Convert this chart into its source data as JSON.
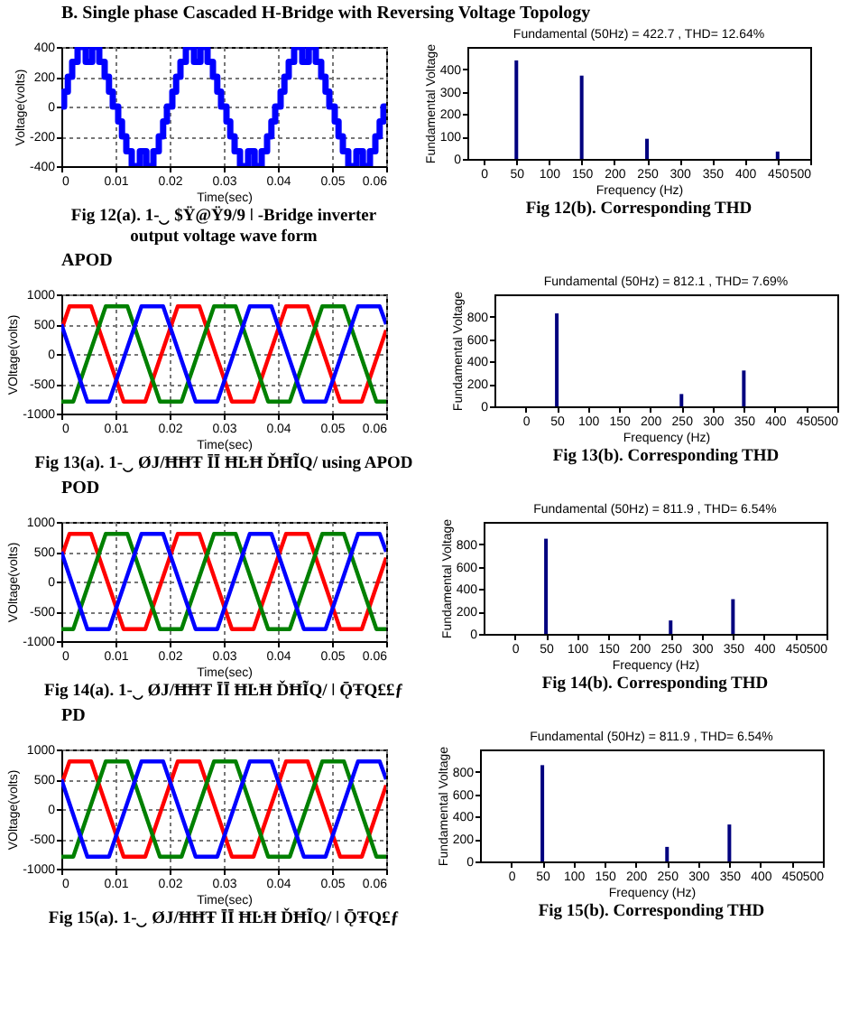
{
  "chart_data": [
    {
      "type": "step",
      "xlabel": "Time(sec)",
      "ylabel": "Voltage(volts)",
      "grid": true,
      "xlim": [
        0,
        0.06
      ],
      "ylim": [
        -400,
        400
      ],
      "xticks": [
        0,
        0.01,
        0.02,
        0.03,
        0.04,
        0.05,
        0.06
      ],
      "yticks": [
        -400,
        -200,
        0,
        200,
        400
      ],
      "annotations": [
        "B.   Single phase Cascaded H-Bridge with Reversing Voltage Topology",
        "Fig 12(a). 1-‿ $Ÿ@Ÿ9/9 ǀ -Bridge inverter\noutput voltage wave form"
      ],
      "x": [
        0,
        0.0005,
        0.0012,
        0.002,
        0.003,
        0.0045,
        0.0057,
        0.007,
        0.008,
        0.0088,
        0.0095,
        0.0105,
        0.0112,
        0.012,
        0.013,
        0.0145,
        0.0157,
        0.017,
        0.018,
        0.0188,
        0.0195,
        0.02,
        0.0205,
        0.0212,
        0.022,
        0.023,
        0.0245,
        0.0257,
        0.027,
        0.028,
        0.0288,
        0.0295,
        0.0305,
        0.0312,
        0.032,
        0.033,
        0.0345,
        0.0357,
        0.037,
        0.038,
        0.0388,
        0.0395,
        0.04,
        0.0405,
        0.0412,
        0.042,
        0.043,
        0.0445,
        0.0457,
        0.047,
        0.048,
        0.0488,
        0.0495,
        0.0505,
        0.0512,
        0.052,
        0.053,
        0.0545,
        0.0557,
        0.057,
        0.058,
        0.0588,
        0.0595,
        0.06
      ],
      "series": [
        {
          "color": "#0000ff",
          "values": [
            0,
            100,
            200,
            300,
            400,
            300,
            400,
            300,
            200,
            100,
            0,
            -100,
            -200,
            -300,
            -400,
            -300,
            -400,
            -300,
            -200,
            -100,
            0,
            0,
            100,
            200,
            300,
            400,
            300,
            400,
            300,
            200,
            100,
            0,
            -100,
            -200,
            -300,
            -400,
            -300,
            -400,
            -300,
            -200,
            -100,
            0,
            0,
            100,
            200,
            300,
            400,
            300,
            400,
            300,
            200,
            100,
            0,
            -100,
            -200,
            -300,
            -400,
            -300,
            -400,
            -300,
            -200,
            -100,
            0,
            0
          ]
        }
      ]
    },
    {
      "type": "bar",
      "title": "Fundamental (50Hz) = 422.7 , THD= 12.64%",
      "xlabel": "Frequency (Hz)",
      "ylabel": "Fundamental Voltage",
      "xlim": [
        -25,
        500
      ],
      "ylim": [
        0,
        500
      ],
      "xticks": [
        0,
        50,
        100,
        150,
        200,
        250,
        300,
        350,
        400,
        450,
        500
      ],
      "yticks": [
        0,
        100,
        200,
        300,
        400
      ],
      "annotations": [
        "Fig 12(b). Corresponding THD"
      ],
      "x": [
        50,
        150,
        250,
        450
      ],
      "values": [
        440,
        372,
        90,
        33
      ],
      "color": "#00007f"
    },
    {
      "type": "line",
      "xlabel": "Time(sec)",
      "ylabel": "VOltage(volts)",
      "grid": true,
      "xlim": [
        0,
        0.06
      ],
      "ylim": [
        -1000,
        1000
      ],
      "xticks": [
        0,
        0.01,
        0.02,
        0.03,
        0.04,
        0.05,
        0.06
      ],
      "yticks": [
        -1000,
        -500,
        0,
        500,
        1000
      ],
      "annotations": [
        "APOD",
        "Fig 13(a). 1-‿ ØJ/ĦĦŦ ĪĪ ĦĿĦ ĎĦĨQ/ using APOD"
      ],
      "series": [
        {
          "color": "#ff0000",
          "x": [
            0,
            0.0015,
            0.0055,
            0.0115,
            0.0155,
            0.0215,
            0.0255,
            0.0315,
            0.0355,
            0.0415,
            0.0455,
            0.0515,
            0.0555,
            0.06
          ],
          "values": [
            400,
            800,
            800,
            -800,
            -800,
            800,
            800,
            -800,
            -800,
            800,
            800,
            -800,
            -800,
            400
          ]
        },
        {
          "color": "#008000",
          "x": [
            0,
            0.0022,
            0.0082,
            0.0122,
            0.0182,
            0.0222,
            0.0282,
            0.0322,
            0.0382,
            0.0422,
            0.0482,
            0.0522,
            0.0582,
            0.06
          ],
          "values": [
            -800,
            -800,
            800,
            800,
            -800,
            -800,
            800,
            800,
            -800,
            -800,
            800,
            800,
            -800,
            -800
          ]
        },
        {
          "color": "#0000ff",
          "x": [
            0,
            0.0048,
            0.0088,
            0.0148,
            0.0188,
            0.0248,
            0.0288,
            0.0348,
            0.0388,
            0.0448,
            0.0488,
            0.0548,
            0.0588,
            0.06
          ],
          "values": [
            500,
            -800,
            -800,
            800,
            800,
            -800,
            -800,
            800,
            800,
            -800,
            -800,
            800,
            800,
            500
          ]
        }
      ]
    },
    {
      "type": "bar",
      "title": "Fundamental (50Hz) = 812.1 , THD= 7.69%",
      "xlabel": "Frequency (Hz)",
      "ylabel": "Fundamental Voltage",
      "xlim": [
        -50,
        500
      ],
      "ylim": [
        0,
        1000
      ],
      "xticks": [
        0,
        50,
        100,
        150,
        200,
        250,
        300,
        350,
        400,
        450,
        500
      ],
      "yticks": [
        0,
        200,
        400,
        600,
        800
      ],
      "annotations": [
        "Fig 13(b). Corresponding THD"
      ],
      "x": [
        50,
        250,
        350
      ],
      "values": [
        830,
        110,
        320
      ],
      "color": "#00007f"
    },
    {
      "type": "line",
      "xlabel": "Time(sec)",
      "ylabel": "VOltage(volts)",
      "grid": true,
      "xlim": [
        0,
        0.06
      ],
      "ylim": [
        -1000,
        1000
      ],
      "xticks": [
        0,
        0.01,
        0.02,
        0.03,
        0.04,
        0.05,
        0.06
      ],
      "yticks": [
        -1000,
        -500,
        0,
        500,
        1000
      ],
      "annotations": [
        "POD",
        "Fig 14(a). 1-‿ ØJ/ĦĦŦ ĪĪ ĦĿĦ ĎĦĨQ/ ǀ ǬŦQ££ƒ"
      ],
      "series": [
        {
          "color": "#ff0000",
          "x": [
            0,
            0.0015,
            0.0055,
            0.0115,
            0.0155,
            0.0215,
            0.0255,
            0.0315,
            0.0355,
            0.0415,
            0.0455,
            0.0515,
            0.0555,
            0.06
          ],
          "values": [
            400,
            800,
            800,
            -800,
            -800,
            800,
            800,
            -800,
            -800,
            800,
            800,
            -800,
            -800,
            400
          ]
        },
        {
          "color": "#008000",
          "x": [
            0,
            0.0022,
            0.0082,
            0.0122,
            0.0182,
            0.0222,
            0.0282,
            0.0322,
            0.0382,
            0.0422,
            0.0482,
            0.0522,
            0.0582,
            0.06
          ],
          "values": [
            -800,
            -800,
            800,
            800,
            -800,
            -800,
            800,
            800,
            -800,
            -800,
            800,
            800,
            -800,
            -800
          ]
        },
        {
          "color": "#0000ff",
          "x": [
            0,
            0.0048,
            0.0088,
            0.0148,
            0.0188,
            0.0248,
            0.0288,
            0.0348,
            0.0388,
            0.0448,
            0.0488,
            0.0548,
            0.0588,
            0.06
          ],
          "values": [
            500,
            -800,
            -800,
            800,
            800,
            -800,
            -800,
            800,
            800,
            -800,
            -800,
            800,
            800,
            500
          ]
        }
      ]
    },
    {
      "type": "bar",
      "title": "Fundamental (50Hz) = 811.9 , THD= 6.54%",
      "xlabel": "Frequency (Hz)",
      "ylabel": "Fundamental Voltage",
      "xlim": [
        -50,
        500
      ],
      "ylim": [
        0,
        1000
      ],
      "xticks": [
        0,
        50,
        100,
        150,
        200,
        250,
        300,
        350,
        400,
        450,
        500
      ],
      "yticks": [
        0,
        200,
        400,
        600,
        800
      ],
      "annotations": [
        "Fig 14(b). Corresponding THD"
      ],
      "x": [
        50,
        250,
        350
      ],
      "values": [
        850,
        120,
        310
      ],
      "color": "#00007f"
    },
    {
      "type": "line",
      "xlabel": "Time(sec)",
      "ylabel": "VOltage(volts)",
      "grid": true,
      "xlim": [
        0,
        0.06
      ],
      "ylim": [
        -1000,
        1000
      ],
      "xticks": [
        0,
        0.01,
        0.02,
        0.03,
        0.04,
        0.05,
        0.06
      ],
      "yticks": [
        -1000,
        -500,
        0,
        500,
        1000
      ],
      "annotations": [
        "PD",
        "Fig 15(a). 1-‿ ØJ/ĦĦŦ ĪĪ ĦĿĦ ĎĦĨQ/ ǀ ǬŦQ£ƒ"
      ],
      "series": [
        {
          "color": "#ff0000",
          "x": [
            0,
            0.0015,
            0.0055,
            0.0115,
            0.0155,
            0.0215,
            0.0255,
            0.0315,
            0.0355,
            0.0415,
            0.0455,
            0.0515,
            0.0555,
            0.06
          ],
          "values": [
            400,
            800,
            800,
            -800,
            -800,
            800,
            800,
            -800,
            -800,
            800,
            800,
            -800,
            -800,
            400
          ]
        },
        {
          "color": "#008000",
          "x": [
            0,
            0.0022,
            0.0082,
            0.0122,
            0.0182,
            0.0222,
            0.0282,
            0.0322,
            0.0382,
            0.0422,
            0.0482,
            0.0522,
            0.0582,
            0.06
          ],
          "values": [
            -800,
            -800,
            800,
            800,
            -800,
            -800,
            800,
            800,
            -800,
            -800,
            800,
            800,
            -800,
            -800
          ]
        },
        {
          "color": "#0000ff",
          "x": [
            0,
            0.0048,
            0.0088,
            0.0148,
            0.0188,
            0.0248,
            0.0288,
            0.0348,
            0.0388,
            0.0448,
            0.0488,
            0.0548,
            0.0588,
            0.06
          ],
          "values": [
            500,
            -800,
            -800,
            800,
            800,
            -800,
            -800,
            800,
            800,
            -800,
            -800,
            800,
            800,
            500
          ]
        }
      ]
    },
    {
      "type": "bar",
      "title": "Fundamental (50Hz) = 811.9 , THD= 6.54%",
      "xlabel": "Frequency (Hz)",
      "ylabel": "Fundamental Voltage",
      "xlim": [
        -50,
        500
      ],
      "ylim": [
        0,
        1000
      ],
      "xticks": [
        0,
        50,
        100,
        150,
        200,
        250,
        300,
        350,
        400,
        450,
        500
      ],
      "yticks": [
        0,
        200,
        400,
        600,
        800
      ],
      "annotations": [
        "Fig 15(b). Corresponding THD"
      ],
      "x": [
        50,
        250,
        350
      ],
      "values": [
        860,
        130,
        330
      ],
      "color": "#00007f"
    }
  ]
}
